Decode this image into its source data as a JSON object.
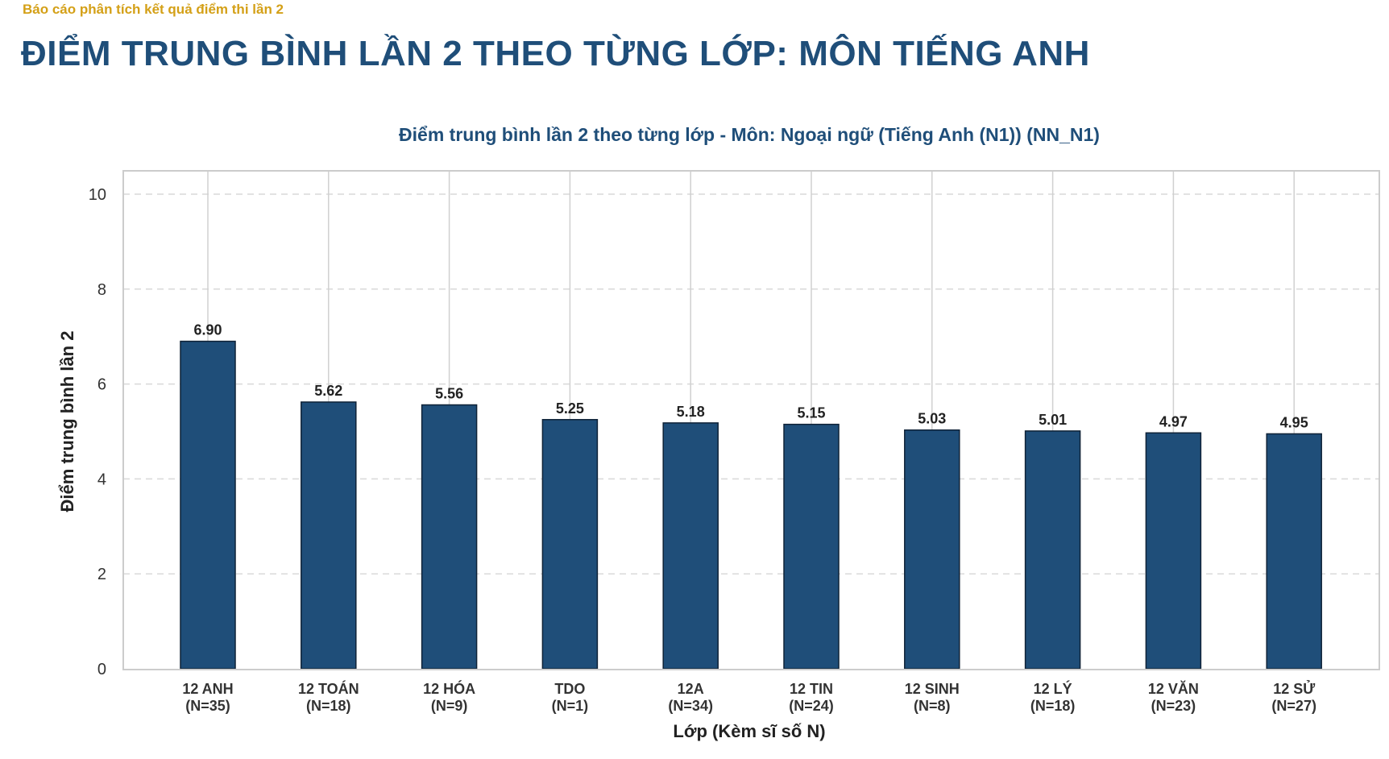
{
  "header": {
    "kicker": "Báo cáo phân tích kết quả điểm thi lần 2",
    "title": "ĐIỂM TRUNG BÌNH LẦN 2 THEO TỪNG LỚP: MÔN TIẾNG ANH"
  },
  "colors": {
    "kicker": "#d4a017",
    "title": "#1f4e79",
    "bar": "#1f4e79"
  },
  "chart_data": {
    "type": "bar",
    "title": "Điểm trung bình lần 2 theo từng lớp - Môn: Ngoại ngữ (Tiếng Anh (N1)) (NN_N1)",
    "xlabel": "Lớp (Kèm sĩ số N)",
    "ylabel": "Điểm trung bình lần 2",
    "ylim": [
      0,
      10
    ],
    "yticks": [
      0,
      2,
      4,
      6,
      8,
      10
    ],
    "grid": true,
    "categories": [
      "12 ANH",
      "12 TOÁN",
      "12 HÓA",
      "TDO",
      "12A",
      "12 TIN",
      "12 SINH",
      "12 LÝ",
      "12 VĂN",
      "12 SỬ"
    ],
    "counts": [
      "(N=35)",
      "(N=18)",
      "(N=9)",
      "(N=1)",
      "(N=34)",
      "(N=24)",
      "(N=8)",
      "(N=18)",
      "(N=23)",
      "(N=27)"
    ],
    "values": [
      6.9,
      5.62,
      5.56,
      5.25,
      5.18,
      5.15,
      5.03,
      5.01,
      4.97,
      4.95
    ],
    "value_labels": [
      "6.90",
      "5.62",
      "5.56",
      "5.25",
      "5.18",
      "5.15",
      "5.03",
      "5.01",
      "4.97",
      "4.95"
    ]
  }
}
